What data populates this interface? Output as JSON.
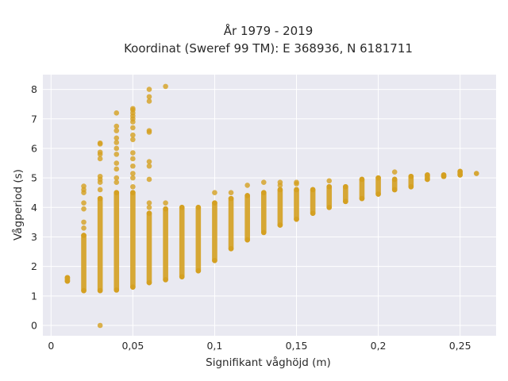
{
  "chart_data": {
    "type": "scatter",
    "title_line1": "År 1979 - 2019",
    "title_line2": "Koordinat (Sweref 99 TM): E 368936, N 6181711",
    "xlabel": "Signifikant våghöjd (m)",
    "ylabel": "Vågperiod (s)",
    "xlim": [
      -0.005,
      0.272
    ],
    "ylim": [
      -0.35,
      8.5
    ],
    "x_ticks": [
      0,
      0.05,
      0.1,
      0.15,
      0.2,
      0.25
    ],
    "x_tick_labels": [
      "0",
      "0,05",
      "0,1",
      "0,15",
      "0,2",
      "0,25"
    ],
    "y_ticks": [
      0,
      1,
      2,
      3,
      4,
      5,
      6,
      7,
      8
    ],
    "y_tick_labels": [
      "0",
      "1",
      "2",
      "3",
      "4",
      "5",
      "6",
      "7",
      "8"
    ],
    "grid": true,
    "background": "#e9e9f1",
    "grid_color": "#ffffff",
    "marker_color": "#d4a020",
    "columns": [
      {
        "x": 0.01,
        "ymin": 1.5,
        "ymax": 1.62,
        "outliers": []
      },
      {
        "x": 0.02,
        "ymin": 1.18,
        "ymax": 3.05,
        "outliers": [
          3.3,
          3.5,
          3.95,
          4.15,
          4.5,
          4.6,
          4.72
        ]
      },
      {
        "x": 0.03,
        "ymin": 1.18,
        "ymax": 4.3,
        "outliers": [
          0.0,
          4.6,
          4.85,
          4.95,
          5.05,
          5.65,
          5.8,
          5.87,
          6.15,
          6.18
        ]
      },
      {
        "x": 0.04,
        "ymin": 1.2,
        "ymax": 4.5,
        "outliers": [
          4.85,
          5.0,
          5.3,
          5.5,
          5.8,
          6.0,
          6.2,
          6.35,
          6.6,
          6.75,
          7.2
        ]
      },
      {
        "x": 0.05,
        "ymin": 1.3,
        "ymax": 4.5,
        "outliers": [
          4.7,
          5.0,
          5.15,
          5.4,
          5.65,
          5.85,
          6.3,
          6.45,
          6.7,
          6.9,
          7.0,
          7.1,
          7.2,
          7.3,
          7.35
        ]
      },
      {
        "x": 0.06,
        "ymin": 1.45,
        "ymax": 3.8,
        "outliers": [
          4.0,
          4.15,
          4.95,
          5.4,
          5.55,
          6.55,
          6.6,
          7.6,
          7.75,
          8.0
        ]
      },
      {
        "x": 0.07,
        "ymin": 1.55,
        "ymax": 3.95,
        "outliers": [
          4.15,
          8.1
        ]
      },
      {
        "x": 0.08,
        "ymin": 1.65,
        "ymax": 4.0,
        "outliers": []
      },
      {
        "x": 0.09,
        "ymin": 1.85,
        "ymax": 4.0,
        "outliers": []
      },
      {
        "x": 0.1,
        "ymin": 2.2,
        "ymax": 4.15,
        "outliers": [
          4.5
        ]
      },
      {
        "x": 0.11,
        "ymin": 2.6,
        "ymax": 4.3,
        "outliers": [
          4.5
        ]
      },
      {
        "x": 0.12,
        "ymin": 2.9,
        "ymax": 4.4,
        "outliers": [
          4.75
        ]
      },
      {
        "x": 0.13,
        "ymin": 3.15,
        "ymax": 4.5,
        "outliers": [
          4.85
        ]
      },
      {
        "x": 0.14,
        "ymin": 3.4,
        "ymax": 4.6,
        "outliers": [
          4.75,
          4.85
        ]
      },
      {
        "x": 0.15,
        "ymin": 3.6,
        "ymax": 4.6,
        "outliers": [
          4.8,
          4.85
        ]
      },
      {
        "x": 0.16,
        "ymin": 3.8,
        "ymax": 4.6,
        "outliers": []
      },
      {
        "x": 0.17,
        "ymin": 4.0,
        "ymax": 4.7,
        "outliers": [
          4.9
        ]
      },
      {
        "x": 0.18,
        "ymin": 4.2,
        "ymax": 4.7,
        "outliers": []
      },
      {
        "x": 0.19,
        "ymin": 4.3,
        "ymax": 4.95,
        "outliers": []
      },
      {
        "x": 0.2,
        "ymin": 4.45,
        "ymax": 5.0,
        "outliers": []
      },
      {
        "x": 0.21,
        "ymin": 4.6,
        "ymax": 4.95,
        "outliers": [
          5.2
        ]
      },
      {
        "x": 0.22,
        "ymin": 4.7,
        "ymax": 5.05,
        "outliers": []
      },
      {
        "x": 0.23,
        "ymin": 4.95,
        "ymax": 5.1,
        "outliers": []
      },
      {
        "x": 0.24,
        "ymin": 5.05,
        "ymax": 5.1,
        "outliers": []
      },
      {
        "x": 0.25,
        "ymin": 5.1,
        "ymax": 5.22,
        "outliers": []
      },
      {
        "x": 0.26,
        "ymin": 5.15,
        "ymax": 5.15,
        "outliers": []
      }
    ]
  }
}
